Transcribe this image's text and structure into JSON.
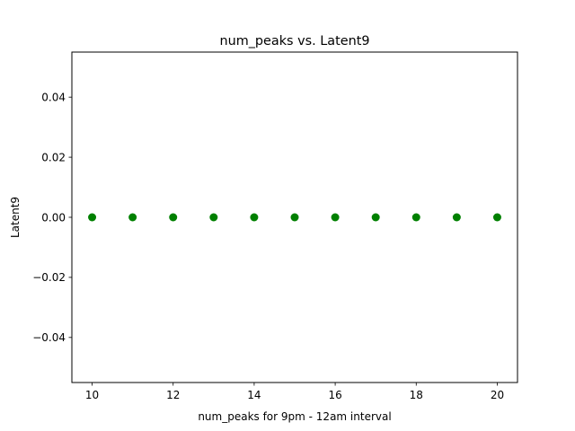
{
  "chart_data": {
    "type": "scatter",
    "title": "num_peaks vs. Latent9",
    "xlabel": "num_peaks for 9pm - 12am interval",
    "ylabel": "Latent9",
    "xlim": [
      9.5,
      20.5
    ],
    "ylim": [
      -0.055,
      0.055
    ],
    "xticks": [
      10,
      12,
      14,
      16,
      18,
      20
    ],
    "yticks": [
      -0.04,
      -0.02,
      0.0,
      0.02,
      0.04
    ],
    "ytick_labels": [
      "−0.04",
      "−0.02",
      "0.00",
      "0.02",
      "0.04"
    ],
    "grid": false,
    "color": "#008000",
    "points": [
      {
        "x": 10,
        "y": 0
      },
      {
        "x": 11,
        "y": 0
      },
      {
        "x": 12,
        "y": 0
      },
      {
        "x": 13,
        "y": 0
      },
      {
        "x": 14,
        "y": 0
      },
      {
        "x": 15,
        "y": 0
      },
      {
        "x": 16,
        "y": 0
      },
      {
        "x": 17,
        "y": 0
      },
      {
        "x": 18,
        "y": 0
      },
      {
        "x": 19,
        "y": 0
      },
      {
        "x": 20,
        "y": 0
      }
    ]
  }
}
